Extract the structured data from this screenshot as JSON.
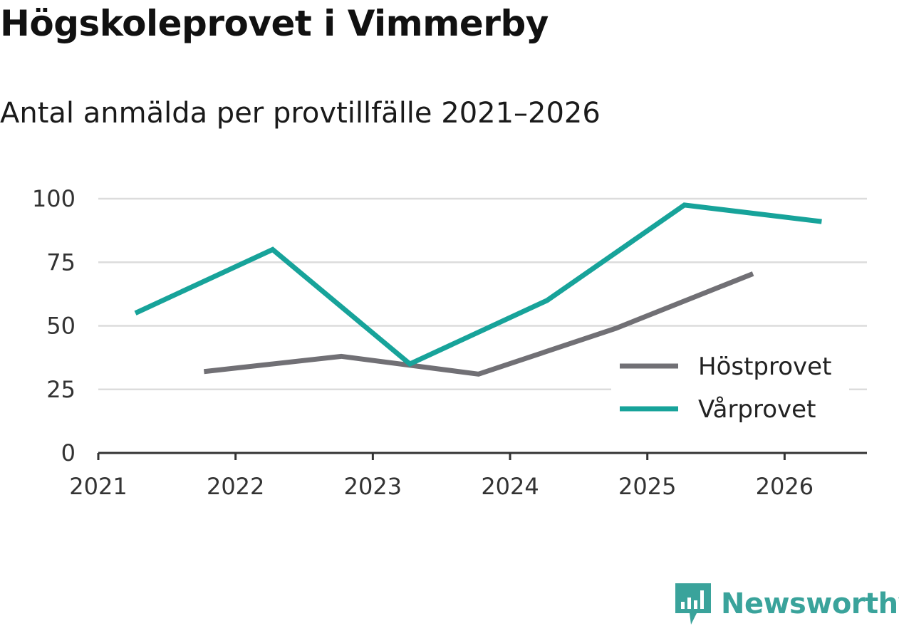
{
  "header": {
    "title": "Högskoleprovet i Vimmerby",
    "subtitle": "Antal anmälda per provtillfälle 2021–2026"
  },
  "brand": {
    "name": "Newsworthy",
    "color": "#3aa39b"
  },
  "chart_data": {
    "type": "line",
    "title": "Högskoleprovet i Vimmerby",
    "subtitle": "Antal anmälda per provtillfälle 2021–2026",
    "xlabel": "",
    "ylabel": "",
    "xlim": [
      2021,
      2026.6
    ],
    "ylim": [
      0,
      100
    ],
    "x_ticks": [
      "2021",
      "2022",
      "2023",
      "2024",
      "2025",
      "2026"
    ],
    "y_ticks": [
      0,
      25,
      50,
      75,
      100
    ],
    "grid": true,
    "legend_position": "bottom-right",
    "series": [
      {
        "name": "Höstprovet",
        "color": "#717075",
        "x": [
          2021.77,
          2022.77,
          2023.77,
          2024.77,
          2025.77
        ],
        "values": [
          32,
          38,
          31,
          49,
          70.5
        ]
      },
      {
        "name": "Vårprovet",
        "color": "#17a39a",
        "x": [
          2021.27,
          2022.27,
          2023.27,
          2024.27,
          2025.27,
          2026.27
        ],
        "values": [
          55,
          80,
          35,
          60,
          97.5,
          91
        ]
      }
    ]
  }
}
